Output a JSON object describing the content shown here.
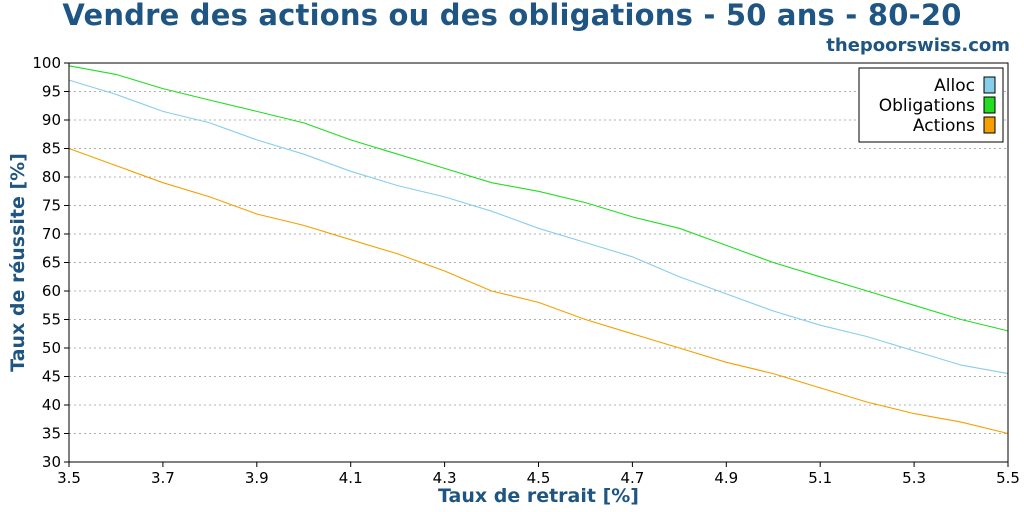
{
  "header": {
    "title": "Vendre des actions ou des obligations - 50 ans - 80-20",
    "watermark": "thepoorswiss.com"
  },
  "colors": {
    "title": "#1f5582",
    "Alloc": "#87ceeb",
    "Obligations": "#22dd22",
    "Actions": "#f5a000",
    "grid": "#b0b0b0"
  },
  "chart_data": {
    "type": "line",
    "title": "Vendre des actions ou des obligations - 50 ans - 80-20",
    "xlabel": "Taux de retrait [%]",
    "ylabel": "Taux de réussite [%]",
    "xlim": [
      3.5,
      5.5
    ],
    "ylim": [
      30,
      100
    ],
    "x_ticks": [
      "3.5",
      "3.7",
      "3.9",
      "4.1",
      "4.3",
      "4.5",
      "4.7",
      "4.9",
      "5.1",
      "5.3",
      "5.5"
    ],
    "y_ticks": [
      "30",
      "35",
      "40",
      "45",
      "50",
      "55",
      "60",
      "65",
      "70",
      "75",
      "80",
      "85",
      "90",
      "95",
      "100"
    ],
    "grid": "horizontal dotted",
    "legend_position": "top-right",
    "x": [
      3.5,
      3.6,
      3.7,
      3.8,
      3.9,
      4.0,
      4.1,
      4.2,
      4.3,
      4.4,
      4.5,
      4.6,
      4.7,
      4.8,
      4.9,
      5.0,
      5.1,
      5.2,
      5.3,
      5.4,
      5.5
    ],
    "series": [
      {
        "name": "Alloc",
        "color": "#87ceeb",
        "values": [
          97.0,
          94.5,
          91.5,
          89.5,
          86.5,
          84.0,
          81.0,
          78.5,
          76.5,
          74.0,
          71.0,
          68.5,
          66.0,
          62.5,
          59.5,
          56.5,
          54.0,
          52.0,
          49.5,
          47.0,
          45.5
        ]
      },
      {
        "name": "Obligations",
        "color": "#22dd22",
        "values": [
          99.5,
          98.0,
          95.5,
          93.5,
          91.5,
          89.5,
          86.5,
          84.0,
          81.5,
          79.0,
          77.5,
          75.5,
          73.0,
          71.0,
          68.0,
          65.0,
          62.5,
          60.0,
          57.5,
          55.0,
          53.0
        ]
      },
      {
        "name": "Actions",
        "color": "#f5a000",
        "values": [
          85.0,
          82.0,
          79.0,
          76.5,
          73.5,
          71.5,
          69.0,
          66.5,
          63.5,
          60.0,
          58.0,
          55.0,
          52.5,
          50.0,
          47.5,
          45.5,
          43.0,
          40.5,
          38.5,
          37.0,
          35.0
        ]
      }
    ]
  }
}
